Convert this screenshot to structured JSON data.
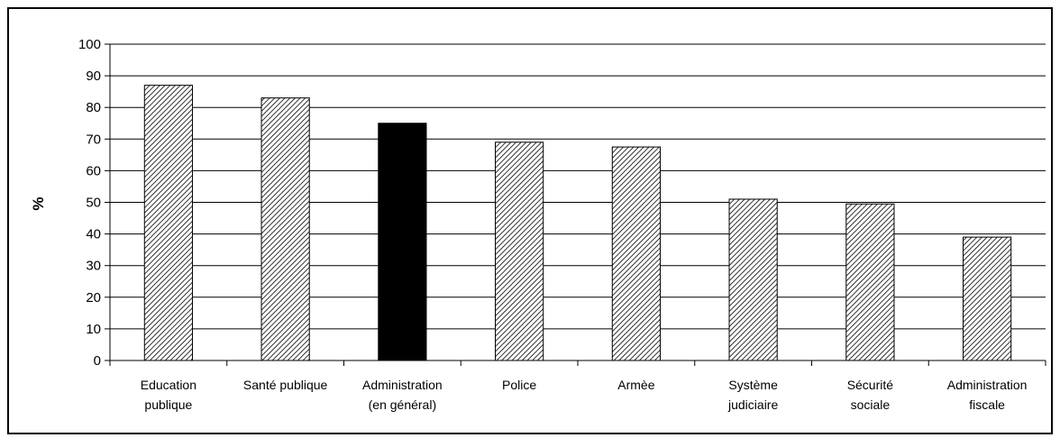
{
  "chart_data": {
    "type": "bar",
    "title": "",
    "xlabel": "",
    "ylabel": "%",
    "ylim": [
      0,
      100
    ],
    "yticks": [
      0,
      10,
      20,
      30,
      40,
      50,
      60,
      70,
      80,
      90,
      100
    ],
    "grid": true,
    "categories": [
      [
        "Education",
        "publique"
      ],
      [
        "Santé publique"
      ],
      [
        "Administration",
        "(en général)"
      ],
      [
        "Police"
      ],
      [
        "Armèe"
      ],
      [
        "Système",
        "judiciaire"
      ],
      [
        "Sécurité",
        "sociale"
      ],
      [
        "Administration",
        "fiscale"
      ]
    ],
    "values": [
      87,
      83,
      75,
      69,
      67.5,
      51,
      49.5,
      39
    ],
    "bar_styles": [
      "hatched",
      "hatched",
      "solid",
      "hatched",
      "hatched",
      "hatched",
      "hatched",
      "hatched"
    ]
  },
  "colors": {
    "solid_bar": "#000000",
    "hatch_line": "#000000",
    "hatch_bg": "#ffffff",
    "axis": "#000000"
  }
}
